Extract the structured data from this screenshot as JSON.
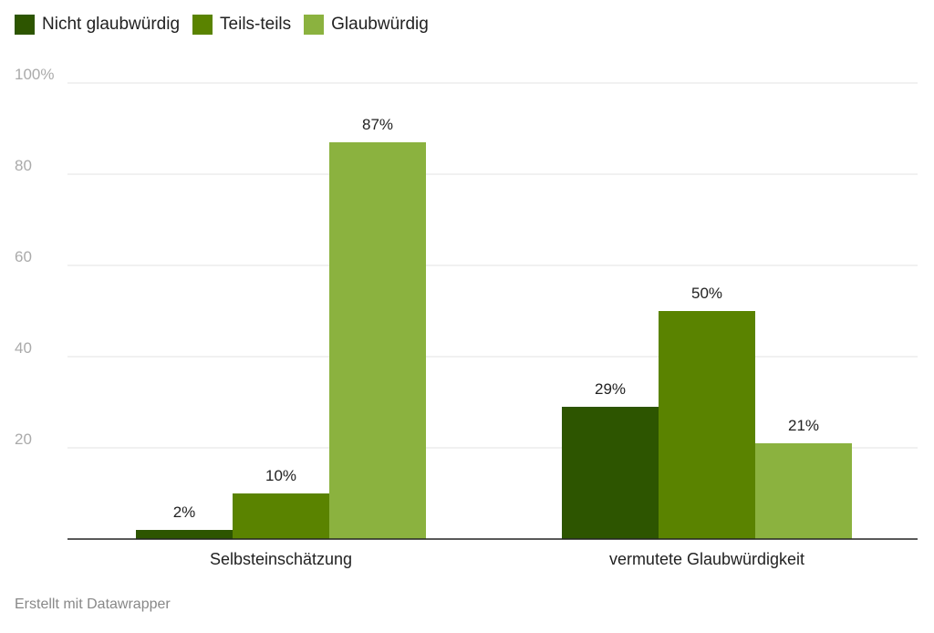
{
  "footer": {
    "credit": "Erstellt mit Datawrapper"
  },
  "colors": {
    "grid": "#e3e3e3",
    "axis": "#222222",
    "tick_label": "#aaaaaa",
    "value_label": "#222222",
    "category_label": "#222222"
  },
  "chart_data": {
    "type": "bar",
    "categories": [
      "Selbsteinschätzung",
      "vermutete Glaubwürdigkeit"
    ],
    "series": [
      {
        "name": "Nicht glaubwürdig",
        "color": "#2d5500",
        "values": [
          2,
          29
        ],
        "labels": [
          "2%",
          "29%"
        ]
      },
      {
        "name": "Teils-teils",
        "color": "#5a8300",
        "values": [
          10,
          50
        ],
        "labels": [
          "10%",
          "50%"
        ]
      },
      {
        "name": "Glaubwürdig",
        "color": "#8bb23f",
        "values": [
          87,
          21
        ],
        "labels": [
          "87%",
          "21%"
        ]
      }
    ],
    "ylim": [
      0,
      100
    ],
    "yticks": [
      {
        "value": 100,
        "label": "100%"
      },
      {
        "value": 80,
        "label": "80"
      },
      {
        "value": 60,
        "label": "60"
      },
      {
        "value": 40,
        "label": "40"
      },
      {
        "value": 20,
        "label": "20"
      }
    ],
    "grid": true,
    "legend_position": "top-left",
    "title": "",
    "xlabel": "",
    "ylabel": ""
  }
}
